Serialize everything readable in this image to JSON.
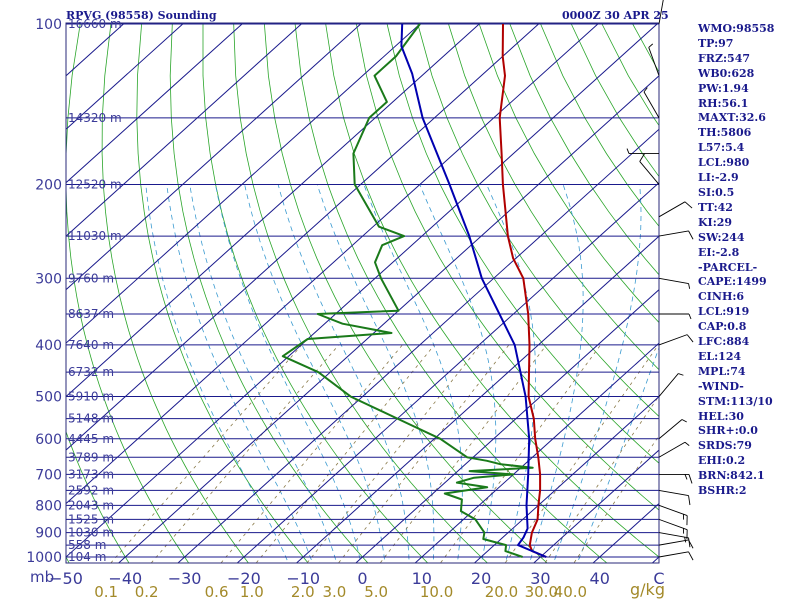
{
  "header": {
    "station": "RPVG (98558) Sounding",
    "valid_time": "0000Z 30 APR 25"
  },
  "chart_data": {
    "type": "skew-t log-p sounding",
    "pressure_axis": {
      "unit_label": "mb",
      "ticks": [
        100,
        200,
        300,
        400,
        500,
        600,
        700,
        800,
        900,
        1000
      ],
      "range": [
        1000,
        100
      ],
      "log_scale": true
    },
    "height_levels": [
      {
        "p": 100,
        "label": "16660 m"
      },
      {
        "p": 150,
        "label": "14320 m"
      },
      {
        "p": 200,
        "label": "12520 m"
      },
      {
        "p": 250,
        "label": "11030 m"
      },
      {
        "p": 300,
        "label": "9760 m"
      },
      {
        "p": 350,
        "label": "8637 m"
      },
      {
        "p": 400,
        "label": "7640 m"
      },
      {
        "p": 450,
        "label": "6732 m"
      },
      {
        "p": 500,
        "label": "5910 m"
      },
      {
        "p": 550,
        "label": "5148 m"
      },
      {
        "p": 600,
        "label": "4445 m"
      },
      {
        "p": 650,
        "label": "3789 m"
      },
      {
        "p": 700,
        "label": "3173 m"
      },
      {
        "p": 750,
        "label": "2592 m"
      },
      {
        "p": 800,
        "label": "2043 m"
      },
      {
        "p": 850,
        "label": "1525 m"
      },
      {
        "p": 900,
        "label": "1030 m"
      },
      {
        "p": 950,
        "label": "558 m"
      },
      {
        "p": 1000,
        "label": "104 m"
      }
    ],
    "temperature_axis": {
      "ticks": [
        -50,
        -40,
        -30,
        -20,
        -10,
        0,
        10,
        20,
        30,
        40
      ],
      "range": [
        -50,
        50
      ],
      "unit_label": "C",
      "skewed": true
    },
    "mixing_ratio_axis": {
      "unit_label": "g/kg",
      "ticks": [
        "0.1",
        "0.2",
        "0.6",
        "1.0",
        "2.0",
        "3.0",
        "5.0",
        "10.0",
        "20.0",
        "30.0",
        "40.0"
      ]
    },
    "series": [
      {
        "color": "#b00000",
        "points": [
          [
            1000,
            31
          ],
          [
            975,
            27.5
          ],
          [
            950,
            26
          ],
          [
            925,
            25
          ],
          [
            900,
            24
          ],
          [
            850,
            22.5
          ],
          [
            800,
            20
          ],
          [
            750,
            17.5
          ],
          [
            700,
            14.5
          ],
          [
            650,
            11
          ],
          [
            600,
            7
          ],
          [
            550,
            3
          ],
          [
            500,
            -2
          ],
          [
            450,
            -6.5
          ],
          [
            400,
            -11.5
          ],
          [
            350,
            -17.5
          ],
          [
            300,
            -25
          ],
          [
            275,
            -30.5
          ],
          [
            250,
            -35.5
          ],
          [
            200,
            -46
          ],
          [
            175,
            -52
          ],
          [
            150,
            -59
          ],
          [
            125,
            -66
          ],
          [
            115,
            -70
          ],
          [
            100,
            -76
          ]
        ]
      },
      {
        "color": "#1a7a1a",
        "points": [
          [
            1000,
            27
          ],
          [
            975,
            23
          ],
          [
            950,
            22
          ],
          [
            925,
            17
          ],
          [
            900,
            16
          ],
          [
            850,
            12
          ],
          [
            820,
            8
          ],
          [
            780,
            6
          ],
          [
            760,
            2
          ],
          [
            740,
            8
          ],
          [
            725,
            2
          ],
          [
            710,
            4
          ],
          [
            700,
            10
          ],
          [
            690,
            2
          ],
          [
            680,
            12
          ],
          [
            670,
            6
          ],
          [
            660,
            3
          ],
          [
            650,
            -1
          ],
          [
            600,
            -9
          ],
          [
            550,
            -20
          ],
          [
            500,
            -32
          ],
          [
            450,
            -42
          ],
          [
            420,
            -51
          ],
          [
            390,
            -50
          ],
          [
            380,
            -37
          ],
          [
            365,
            -47
          ],
          [
            350,
            -53
          ],
          [
            345,
            -40
          ],
          [
            300,
            -49
          ],
          [
            280,
            -53
          ],
          [
            260,
            -55
          ],
          [
            250,
            -53
          ],
          [
            240,
            -59
          ],
          [
            200,
            -71
          ],
          [
            175,
            -77
          ],
          [
            150,
            -81
          ],
          [
            140,
            -81
          ],
          [
            125,
            -88
          ],
          [
            115,
            -88
          ],
          [
            100,
            -90
          ]
        ]
      },
      {
        "color": "#0000b0",
        "points": [
          [
            1000,
            31
          ],
          [
            950,
            24
          ],
          [
            919,
            23.5
          ],
          [
            884,
            22.5
          ],
          [
            800,
            18
          ],
          [
            700,
            12.5
          ],
          [
            600,
            6
          ],
          [
            500,
            -2.5
          ],
          [
            400,
            -14
          ],
          [
            300,
            -32
          ],
          [
            250,
            -42
          ],
          [
            200,
            -55
          ],
          [
            150,
            -72
          ],
          [
            124,
            -82
          ],
          [
            110,
            -89
          ],
          [
            100,
            -93
          ]
        ]
      }
    ],
    "wind_barbs": [
      {
        "p": 1000,
        "dir": 80,
        "spd": 10
      },
      {
        "p": 950,
        "dir": 80,
        "spd": 10
      },
      {
        "p": 900,
        "dir": 100,
        "spd": 15
      },
      {
        "p": 850,
        "dir": 110,
        "spd": 15
      },
      {
        "p": 800,
        "dir": 110,
        "spd": 15
      },
      {
        "p": 750,
        "dir": 100,
        "spd": 10
      },
      {
        "p": 700,
        "dir": 90,
        "spd": 15
      },
      {
        "p": 650,
        "dir": 60,
        "spd": 5
      },
      {
        "p": 600,
        "dir": 50,
        "spd": 5
      },
      {
        "p": 500,
        "dir": 40,
        "spd": 5
      },
      {
        "p": 400,
        "dir": 70,
        "spd": 10
      },
      {
        "p": 350,
        "dir": 90,
        "spd": 5
      },
      {
        "p": 300,
        "dir": 100,
        "spd": 5
      },
      {
        "p": 250,
        "dir": 80,
        "spd": 10
      },
      {
        "p": 230,
        "dir": 60,
        "spd": 10
      },
      {
        "p": 200,
        "dir": 320,
        "spd": 10
      },
      {
        "p": 175,
        "dir": 270,
        "spd": 5
      },
      {
        "p": 150,
        "dir": 330,
        "spd": 5
      },
      {
        "p": 125,
        "dir": 340,
        "spd": 5
      },
      {
        "p": 100,
        "dir": 10,
        "spd": 10
      }
    ],
    "grid": true
  },
  "indices": [
    "WMO:98558",
    "TP:97",
    "FRZ:547",
    "WB0:628",
    "PW:1.94",
    "RH:56.1",
    "MAXT:32.6",
    "TH:5806",
    "L57:5.4",
    "LCL:980",
    "LI:-2.9",
    "SI:0.5",
    "TT:42",
    "KI:29",
    "SW:244",
    "EI:-2.8",
    "-PARCEL-",
    "CAPE:1499",
    "CINH:6",
    "LCL:919",
    "CAP:0.8",
    "LFC:884",
    "EL:124",
    "MPL:74",
    "-WIND-",
    "STM:113/10",
    "HEL:30",
    "SHR+:0.0",
    "SRDS:79",
    "EHI:0.2",
    "BRN:842.1",
    "BSHR:2"
  ],
  "colors": {
    "isobar": "#1a1a8c",
    "isotherm": "#1a1a8c",
    "dry_adiabat": "#2aa52a",
    "moist_adiabat": "#3a9ad0",
    "mixing_ratio": "#8a7a4a",
    "frame": "#2a2a7a",
    "barb": "#000000"
  }
}
